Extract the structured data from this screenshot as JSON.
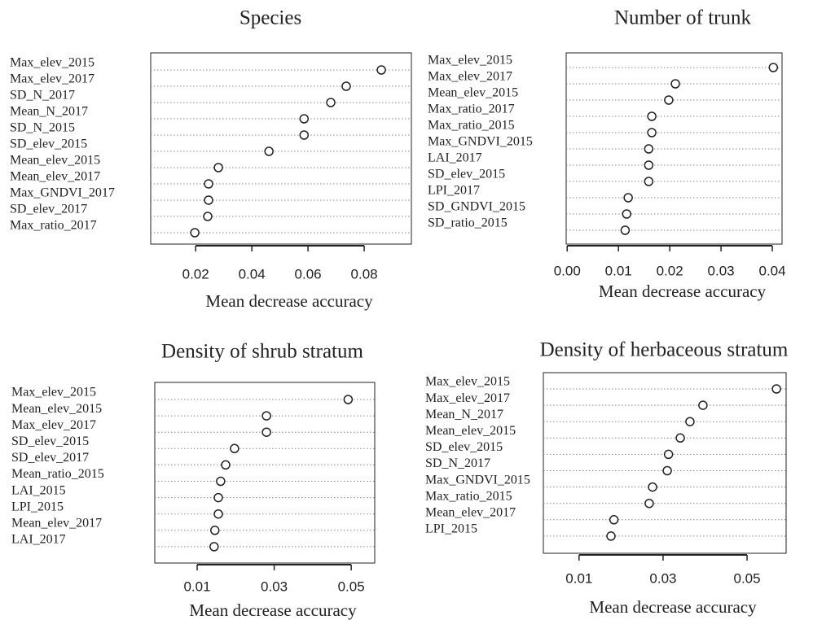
{
  "chart_data": [
    {
      "type": "dot",
      "title": "Species",
      "xlabel": "Mean decrease accuracy",
      "categories": [
        "Max_elev_2015",
        "Max_elev_2017",
        "SD_N_2017",
        "Mean_N_2017",
        "SD_N_2015",
        "SD_elev_2015",
        "Mean_elev_2015",
        "Mean_elev_2017",
        "Max_GNDVI_2017",
        "SD_elev_2017",
        "Max_ratio_2017"
      ],
      "values": [
        0.0861,
        0.0736,
        0.0681,
        0.0586,
        0.0586,
        0.0461,
        0.0281,
        0.0246,
        0.0246,
        0.0243,
        0.0197
      ],
      "xlim": [
        0.004,
        0.0968
      ],
      "xticks": [
        0.02,
        0.04,
        0.06,
        0.08
      ]
    },
    {
      "type": "dot",
      "title": "Number of trunk",
      "xlabel": "Mean decrease accuracy",
      "categories": [
        "Max_elev_2015",
        "Max_elev_2017",
        "Mean_elev_2015",
        "Max_ratio_2017",
        "Max_ratio_2015",
        "Max_GNDVI_2015",
        "LAI_2017",
        "SD_elev_2015",
        "LPI_2017",
        "SD_GNDVI_2015",
        "SD_ratio_2015"
      ],
      "values": [
        0.0402,
        0.0211,
        0.0198,
        0.0165,
        0.0165,
        0.0159,
        0.0159,
        0.0159,
        0.0119,
        0.0116,
        0.0113
      ],
      "xlim": [
        -0.0002,
        0.0419
      ],
      "xticks": [
        {
          "value": 0,
          "label": "0.00"
        },
        0.01,
        0.02,
        0.03,
        0.04
      ]
    },
    {
      "type": "dot",
      "title": "Density of shrub stratum",
      "xlabel": "Mean decrease accuracy",
      "categories": [
        "Max_elev_2015",
        "Mean_elev_2015",
        "Max_elev_2017",
        "SD_elev_2015",
        "SD_elev_2017",
        "Mean_ratio_2015",
        "LAI_2015",
        "LPI_2015",
        "Mean_elev_2017",
        "LAI_2017"
      ],
      "values": [
        0.0492,
        0.028,
        0.028,
        0.0197,
        0.0174,
        0.0161,
        0.0155,
        0.0155,
        0.0146,
        0.0144
      ],
      "xlim": [
        -0.001,
        0.0561
      ],
      "xticks": [
        0.01,
        0.03,
        0.05
      ]
    },
    {
      "type": "dot",
      "title": "Density of herbaceous stratum",
      "xlabel": "Mean decrease accuracy",
      "categories": [
        "Max_elev_2015",
        "Max_elev_2017",
        "Mean_N_2017",
        "Mean_elev_2015",
        "SD_elev_2015",
        "SD_N_2017",
        "Max_GNDVI_2015",
        "Max_ratio_2015",
        "Mean_elev_2017",
        "LPI_2015"
      ],
      "values": [
        0.057,
        0.0395,
        0.0364,
        0.0341,
        0.0313,
        0.031,
        0.0275,
        0.0267,
        0.0183,
        0.0176
      ],
      "xlim": [
        0.0015,
        0.0593
      ],
      "xticks": [
        0.01,
        0.03,
        0.05
      ]
    }
  ]
}
